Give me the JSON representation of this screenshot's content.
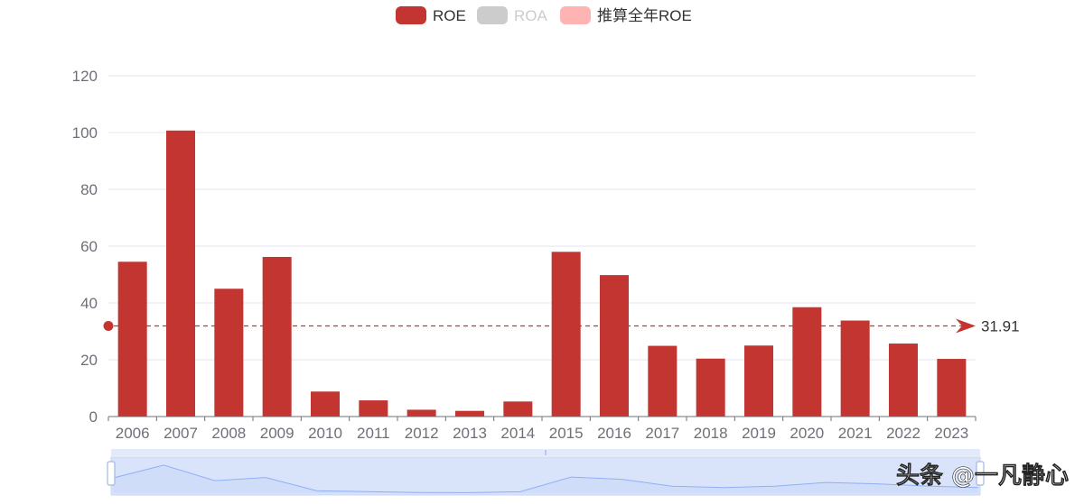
{
  "colors": {
    "roe": "#c23531",
    "roa": "#cccccc",
    "roe_full_year": "#ffb3b3",
    "grid": "#e0e6f1",
    "axis": "#6e7079",
    "zoom_fill": "#d9e4fb",
    "zoom_line": "#8fb0f7"
  },
  "legend": [
    {
      "label": "ROE",
      "color": "#c23531",
      "text_color": "#333333"
    },
    {
      "label": "ROA",
      "color": "#cccccc",
      "text_color": "#cccccc"
    },
    {
      "label": "推算全年ROE",
      "color": "#ffb3b3",
      "text_color": "#333333"
    }
  ],
  "mark_line": {
    "value": 31.91,
    "label": "31.91"
  },
  "watermark": "头条 @一凡静心",
  "chart_data": {
    "type": "bar",
    "categories": [
      "2006",
      "2007",
      "2008",
      "2009",
      "2010",
      "2011",
      "2012",
      "2013",
      "2014",
      "2015",
      "2016",
      "2017",
      "2018",
      "2019",
      "2020",
      "2021",
      "2022",
      "2023"
    ],
    "series": [
      {
        "name": "ROE",
        "values": [
          54.5,
          100.7,
          45.0,
          56.2,
          8.8,
          5.7,
          2.4,
          2.0,
          5.3,
          58.0,
          49.8,
          24.9,
          20.4,
          25.0,
          38.5,
          33.8,
          25.7,
          20.3
        ]
      }
    ],
    "ylim": [
      0,
      120
    ],
    "yticks": [
      0,
      20,
      40,
      60,
      80,
      100,
      120
    ],
    "grid": true,
    "legend_position": "top-center",
    "data_zoom": {
      "start": 0,
      "end": 100
    }
  }
}
